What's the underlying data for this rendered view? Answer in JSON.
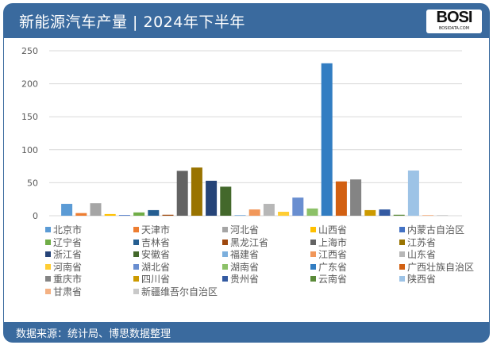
{
  "header": {
    "title": "新能源汽车产量 | 2024年下半年",
    "logo_text": "BOSI",
    "logo_sub": "BOSIDATA.COM"
  },
  "footer": {
    "source": "数据来源：统计局、博思数据整理"
  },
  "chart_data": {
    "type": "bar",
    "title": "新能源汽车产量 | 2024年下半年",
    "xlabel": "",
    "ylabel": "",
    "ylim": [
      0,
      250
    ],
    "yticks": [
      0,
      50,
      100,
      150,
      200,
      250
    ],
    "grid": true,
    "legend_position": "bottom",
    "categories": [
      "北京市",
      "天津市",
      "河北省",
      "山西省",
      "内蒙古自治区",
      "辽宁省",
      "吉林省",
      "黑龙江省",
      "上海市",
      "江苏省",
      "浙江省",
      "安徽省",
      "福建省",
      "江西省",
      "山东省",
      "河南省",
      "湖北省",
      "湖南省",
      "广东省",
      "广西壮族自治区",
      "重庆市",
      "四川省",
      "贵州省",
      "云南省",
      "陕西省",
      "甘肃省",
      "新疆维吾尔自治区"
    ],
    "values": [
      18,
      4,
      19,
      2.5,
      1,
      5,
      8.5,
      1.5,
      68,
      73,
      53,
      44,
      1,
      9.5,
      18,
      6,
      27.5,
      11,
      231,
      52,
      55,
      8.5,
      9.5,
      1.5,
      68.5,
      1,
      1
    ],
    "colors": [
      "#5B9BD5",
      "#ED7D31",
      "#A5A5A5",
      "#FFC000",
      "#4472C4",
      "#70AD47",
      "#255E91",
      "#9E480E",
      "#636363",
      "#997300",
      "#264478",
      "#43682B",
      "#7CAFDD",
      "#F1975A",
      "#B7B7B7",
      "#FFCD33",
      "#698ED0",
      "#8CC168",
      "#327DC2",
      "#D26012",
      "#848484",
      "#CC9A00",
      "#335AA1",
      "#5A8A39",
      "#9DC3E6",
      "#F4B183",
      "#C9C9C9"
    ]
  }
}
